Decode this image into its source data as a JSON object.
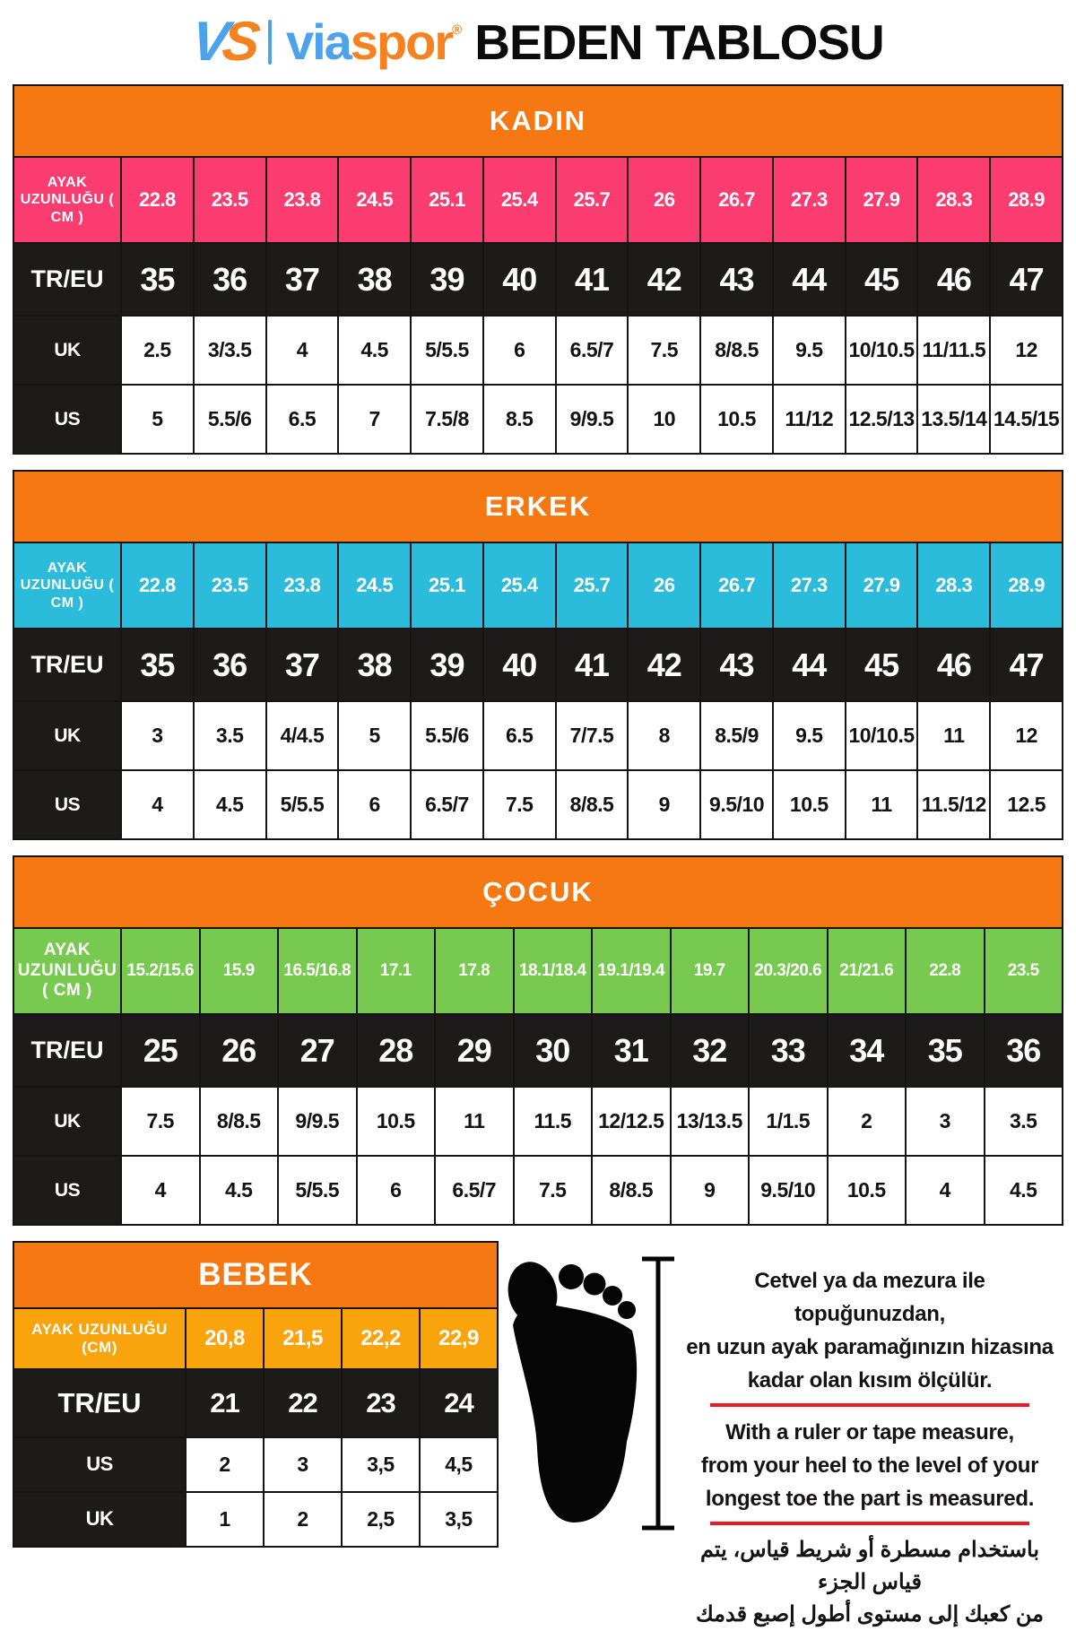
{
  "brand": {
    "logo_v": "V",
    "logo_s": "S",
    "word_blue": "via",
    "word_orange": "spor",
    "registered": "®",
    "title": "BEDEN TABLOSU"
  },
  "colors": {
    "section_header_orange": "#F57813",
    "kadin_pink": "#FA3C70",
    "erkek_cyan": "#2BBCDB",
    "cocuk_green": "#77C94F",
    "bebek_amber": "#F9A30D",
    "row_black": "#1D1A1A",
    "underline_red": "#EC1B23",
    "logo_blue": "#4CA2EB",
    "logo_orange": "#F58220"
  },
  "tables": [
    {
      "id": "kadin",
      "title": "KADIN",
      "accent": "#FA3C70",
      "rows": [
        {
          "key": "cm",
          "type": "cm",
          "label": "AYAK UZUNLUĞU ( CM )",
          "values": [
            "22.8",
            "23.5",
            "23.8",
            "24.5",
            "25.1",
            "25.4",
            "25.7",
            "26",
            "26.7",
            "27.3",
            "27.9",
            "28.3",
            "28.9"
          ]
        },
        {
          "key": "tr-eu",
          "type": "size",
          "label": "TR/EU",
          "values": [
            "35",
            "36",
            "37",
            "38",
            "39",
            "40",
            "41",
            "42",
            "43",
            "44",
            "45",
            "46",
            "47"
          ]
        },
        {
          "key": "uk",
          "type": "plain",
          "label": "UK",
          "values": [
            "2.5",
            "3/3.5",
            "4",
            "4.5",
            "5/5.5",
            "6",
            "6.5/7",
            "7.5",
            "8/8.5",
            "9.5",
            "10/10.5",
            "11/11.5",
            "12"
          ]
        },
        {
          "key": "us",
          "type": "plain",
          "label": "US",
          "values": [
            "5",
            "5.5/6",
            "6.5",
            "7",
            "7.5/8",
            "8.5",
            "9/9.5",
            "10",
            "10.5",
            "11/12",
            "12.5/13",
            "13.5/14",
            "14.5/15"
          ]
        }
      ]
    },
    {
      "id": "erkek",
      "title": "ERKEK",
      "accent": "#2BBCDB",
      "rows": [
        {
          "key": "cm",
          "type": "cm",
          "label": "AYAK UZUNLUĞU ( CM )",
          "values": [
            "22.8",
            "23.5",
            "23.8",
            "24.5",
            "25.1",
            "25.4",
            "25.7",
            "26",
            "26.7",
            "27.3",
            "27.9",
            "28.3",
            "28.9"
          ]
        },
        {
          "key": "tr-eu",
          "type": "size",
          "label": "TR/EU",
          "values": [
            "35",
            "36",
            "37",
            "38",
            "39",
            "40",
            "41",
            "42",
            "43",
            "44",
            "45",
            "46",
            "47"
          ]
        },
        {
          "key": "uk",
          "type": "plain",
          "label": "UK",
          "values": [
            "3",
            "3.5",
            "4/4.5",
            "5",
            "5.5/6",
            "6.5",
            "7/7.5",
            "8",
            "8.5/9",
            "9.5",
            "10/10.5",
            "11",
            "12"
          ]
        },
        {
          "key": "us",
          "type": "plain",
          "label": "US",
          "values": [
            "4",
            "4.5",
            "5/5.5",
            "6",
            "6.5/7",
            "7.5",
            "8/8.5",
            "9",
            "9.5/10",
            "10.5",
            "11",
            "11.5/12",
            "12.5"
          ]
        }
      ]
    },
    {
      "id": "cocuk",
      "title": "ÇOCUK",
      "accent": "#77C94F",
      "rows": [
        {
          "key": "cm",
          "type": "cm",
          "label": "AYAK UZUNLUĞU ( CM )",
          "values": [
            "15.2/15.6",
            "15.9",
            "16.5/16.8",
            "17.1",
            "17.8",
            "18.1/18.4",
            "19.1/19.4",
            "19.7",
            "20.3/20.6",
            "21/21.6",
            "22.8",
            "23.5"
          ]
        },
        {
          "key": "tr-eu",
          "type": "size",
          "label": "TR/EU",
          "values": [
            "25",
            "26",
            "27",
            "28",
            "29",
            "30",
            "31",
            "32",
            "33",
            "34",
            "35",
            "36"
          ]
        },
        {
          "key": "uk",
          "type": "plain",
          "label": "UK",
          "values": [
            "7.5",
            "8/8.5",
            "9/9.5",
            "10.5",
            "11",
            "11.5",
            "12/12.5",
            "13/13.5",
            "1/1.5",
            "2",
            "3",
            "3.5"
          ]
        },
        {
          "key": "us",
          "type": "plain",
          "label": "US",
          "values": [
            "4",
            "4.5",
            "5/5.5",
            "6",
            "6.5/7",
            "7.5",
            "8/8.5",
            "9",
            "9.5/10",
            "10.5",
            "4",
            "4.5"
          ]
        }
      ]
    }
  ],
  "bebek_table": {
    "id": "bebek",
    "title": "BEBEK",
    "accent": "#F9A30D",
    "rows": [
      {
        "key": "cm",
        "type": "cm",
        "label": "AYAK UZUNLUĞU (CM)",
        "values": [
          "20,8",
          "21,5",
          "22,2",
          "22,9"
        ]
      },
      {
        "key": "tr-eu",
        "type": "size",
        "label": "TR/EU",
        "values": [
          "21",
          "22",
          "23",
          "24"
        ]
      },
      {
        "key": "us",
        "type": "plain",
        "label": "US",
        "values": [
          "2",
          "3",
          "3,5",
          "4,5"
        ]
      },
      {
        "key": "uk",
        "type": "plain",
        "label": "UK",
        "values": [
          "1",
          "2",
          "2,5",
          "3,5"
        ]
      }
    ]
  },
  "instructions": {
    "tr": [
      "Cetvel ya da mezura ile topuğunuzdan,",
      "en uzun ayak paramağınızın hizasına",
      "kadar olan kısım ölçülür."
    ],
    "en": [
      "With a ruler or tape measure,",
      "from your heel to the level of your",
      "longest toe the part is measured."
    ],
    "ar": [
      "باستخدام مسطرة أو شريط قياس، يتم قياس الجزء",
      "من كعبك إلى مستوى أطول إصبع قدمك"
    ]
  }
}
